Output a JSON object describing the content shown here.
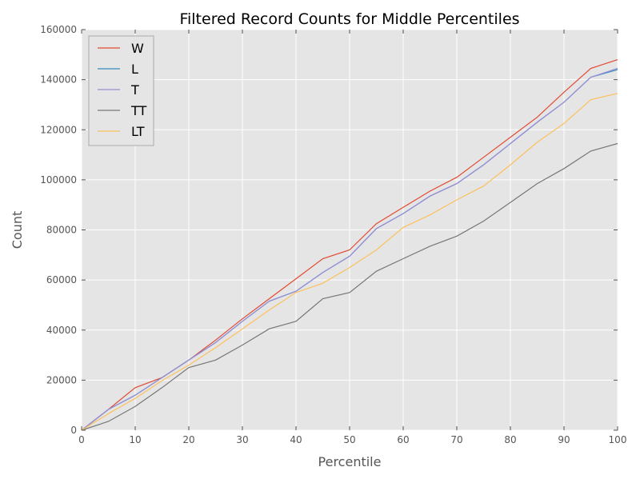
{
  "chart_data": {
    "type": "line",
    "title": "Filtered Record Counts for Middle Percentiles",
    "xlabel": "Percentile",
    "ylabel": "Count",
    "xlim": [
      0,
      100
    ],
    "ylim": [
      0,
      160000
    ],
    "xticks": [
      0,
      10,
      20,
      30,
      40,
      50,
      60,
      70,
      80,
      90,
      100
    ],
    "yticks": [
      0,
      20000,
      40000,
      60000,
      80000,
      100000,
      120000,
      140000,
      160000
    ],
    "grid": true,
    "legend_position": "top-left",
    "background": "#e5e5e5",
    "x": [
      0,
      5,
      10,
      15,
      20,
      25,
      30,
      35,
      40,
      45,
      50,
      55,
      60,
      65,
      70,
      75,
      80,
      85,
      90,
      95,
      100
    ],
    "series": [
      {
        "name": "W",
        "color": "#e24a33",
        "values": [
          0,
          8300,
          17000,
          21000,
          28000,
          36000,
          44500,
          52500,
          60500,
          68500,
          72000,
          82500,
          89000,
          95500,
          101000,
          109000,
          117000,
          125000,
          135000,
          144500,
          148000
        ]
      },
      {
        "name": "L",
        "color": "#348abd",
        "values": [
          0,
          8300,
          14000,
          21000,
          28000,
          35000,
          43500,
          51500,
          55500,
          63000,
          69500,
          80500,
          86500,
          93500,
          98500,
          106000,
          114500,
          123000,
          131000,
          141000,
          144000
        ]
      },
      {
        "name": "T",
        "color": "#988ed5",
        "values": [
          0,
          8300,
          14000,
          21000,
          28000,
          35000,
          43500,
          51500,
          55500,
          63000,
          69500,
          80500,
          86500,
          93500,
          98500,
          106000,
          114500,
          123000,
          131000,
          141000,
          144500
        ]
      },
      {
        "name": "TT",
        "color": "#777777",
        "values": [
          0,
          3500,
          9500,
          17000,
          25000,
          28000,
          34000,
          40500,
          43500,
          52500,
          55000,
          63500,
          68500,
          73500,
          77500,
          83500,
          91000,
          98500,
          104500,
          111500,
          114500
        ]
      },
      {
        "name": "LT",
        "color": "#fbc15e",
        "values": [
          0,
          6600,
          12700,
          19800,
          26000,
          33000,
          40500,
          48000,
          55000,
          58700,
          65000,
          72000,
          81000,
          86000,
          92000,
          97500,
          106000,
          115000,
          122500,
          132000,
          134500
        ]
      }
    ]
  }
}
